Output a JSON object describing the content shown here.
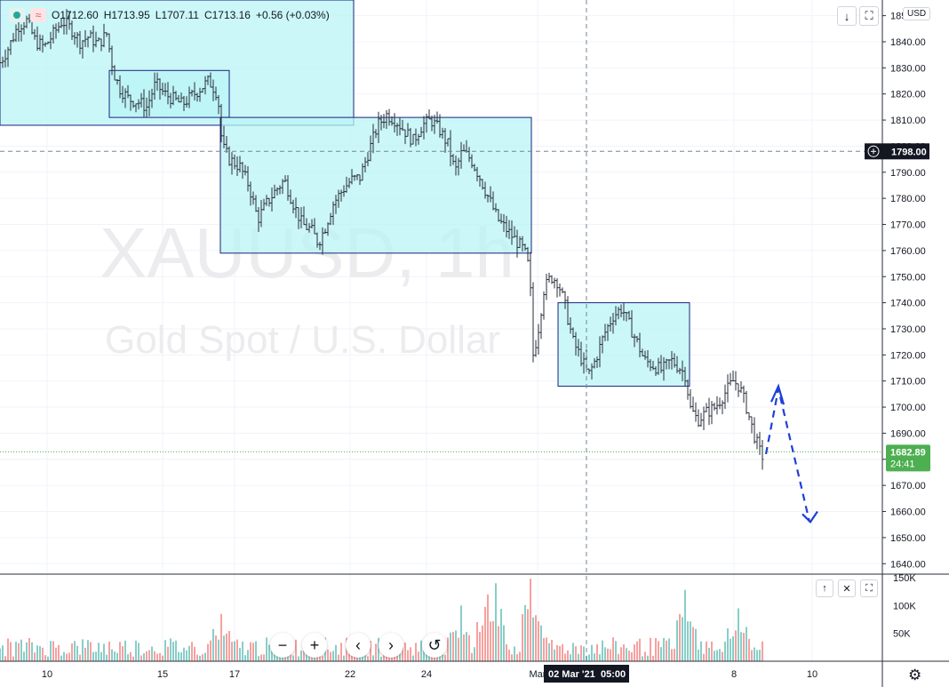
{
  "legend": {
    "open": "O1712.60",
    "high": "H1713.95",
    "low": "L1707.11",
    "close": "C1713.16",
    "change": "+0.56 (+0.03%)",
    "wave_glyph": "≈"
  },
  "toolbar": {
    "download_glyph": "↓",
    "fullscreen_glyph": "⛶",
    "currency": "USD"
  },
  "watermark": {
    "symbol": "XAUUSD, 1h",
    "description": "Gold Spot / U.S. Dollar"
  },
  "volume_pane": {
    "up_glyph": "↑",
    "close_glyph": "✕",
    "maximize_glyph": "⛶"
  },
  "navigation": {
    "zoom_out": "−",
    "zoom_in": "+",
    "scroll_left": "‹",
    "scroll_right": "›",
    "reset": "↺"
  },
  "settings_icon": "⚙",
  "colors": {
    "up": "#26a69a",
    "down": "#ef5350",
    "candle": "#2a2e39",
    "zone_fill": "#b9f4f6",
    "zone_border": "#1a237e",
    "projection": "#1e3fd8",
    "price_tag": "#4caf50",
    "crosshair_tag": "#131722"
  },
  "chart_data": {
    "type": "ohlc",
    "symbol": "XAUUSD",
    "interval": "1h",
    "y_axis": {
      "min": 1636,
      "max": 1856,
      "ticks": [
        1640,
        1650,
        1660,
        1670,
        1680,
        1690,
        1700,
        1710,
        1720,
        1730,
        1740,
        1750,
        1760,
        1770,
        1780,
        1790,
        1800,
        1810,
        1820,
        1830,
        1840,
        1850
      ],
      "tick_labels": [
        "1640.00",
        "1650.00",
        "1660.00",
        "1670.00",
        "1680.00",
        "1690.00",
        "1700.00",
        "1710.00",
        "1720.00",
        "1730.00",
        "1740.00",
        "1750.00",
        "1760.00",
        "1770.00",
        "1780.00",
        "1790.00",
        "1800.00",
        "1810.00",
        "1820.00",
        "1830.00",
        "1840.00",
        "1850.00"
      ]
    },
    "x_axis": {
      "tick_labels": [
        "10",
        "15",
        "17",
        "22",
        "24",
        "Mar",
        "8",
        "10"
      ],
      "crosshair_label_date": "02 Mar '21",
      "crosshair_label_time": "05:00"
    },
    "crosshair_price": "1798.00",
    "current_price": "1682.89",
    "countdown": "24:41",
    "current_price_value": 1682.89,
    "crosshair_price_value": 1798.0,
    "price_path": [
      [
        0,
        1832
      ],
      [
        10,
        1838
      ],
      [
        20,
        1846
      ],
      [
        30,
        1848
      ],
      [
        40,
        1840
      ],
      [
        50,
        1838
      ],
      [
        60,
        1843
      ],
      [
        70,
        1848
      ],
      [
        80,
        1845
      ],
      [
        90,
        1840
      ],
      [
        100,
        1842
      ],
      [
        110,
        1839
      ],
      [
        120,
        1843
      ],
      [
        128,
        1828
      ],
      [
        135,
        1822
      ],
      [
        145,
        1818
      ],
      [
        155,
        1817
      ],
      [
        165,
        1815
      ],
      [
        175,
        1824
      ],
      [
        185,
        1820
      ],
      [
        195,
        1818
      ],
      [
        205,
        1816
      ],
      [
        215,
        1819
      ],
      [
        225,
        1822
      ],
      [
        235,
        1825
      ],
      [
        245,
        1820
      ],
      [
        250,
        1800
      ],
      [
        258,
        1795
      ],
      [
        270,
        1792
      ],
      [
        280,
        1785
      ],
      [
        290,
        1772
      ],
      [
        300,
        1778
      ],
      [
        310,
        1783
      ],
      [
        320,
        1787
      ],
      [
        330,
        1778
      ],
      [
        340,
        1770
      ],
      [
        350,
        1768
      ],
      [
        358,
        1763
      ],
      [
        365,
        1768
      ],
      [
        375,
        1778
      ],
      [
        385,
        1783
      ],
      [
        395,
        1787
      ],
      [
        405,
        1788
      ],
      [
        415,
        1798
      ],
      [
        425,
        1808
      ],
      [
        435,
        1812
      ],
      [
        445,
        1810
      ],
      [
        455,
        1806
      ],
      [
        465,
        1802
      ],
      [
        475,
        1808
      ],
      [
        485,
        1810
      ],
      [
        495,
        1806
      ],
      [
        505,
        1800
      ],
      [
        512,
        1790
      ],
      [
        520,
        1798
      ],
      [
        530,
        1795
      ],
      [
        540,
        1788
      ],
      [
        550,
        1780
      ],
      [
        560,
        1772
      ],
      [
        570,
        1768
      ],
      [
        580,
        1764
      ],
      [
        590,
        1760
      ],
      [
        596,
        1752
      ],
      [
        600,
        1720
      ],
      [
        605,
        1728
      ],
      [
        612,
        1745
      ],
      [
        620,
        1750
      ],
      [
        628,
        1748
      ],
      [
        635,
        1740
      ],
      [
        645,
        1725
      ],
      [
        655,
        1718
      ],
      [
        662,
        1712
      ],
      [
        670,
        1718
      ],
      [
        680,
        1728
      ],
      [
        690,
        1735
      ],
      [
        700,
        1738
      ],
      [
        710,
        1730
      ],
      [
        718,
        1724
      ],
      [
        725,
        1718
      ],
      [
        735,
        1716
      ],
      [
        745,
        1714
      ],
      [
        755,
        1718
      ],
      [
        765,
        1715
      ],
      [
        772,
        1712
      ],
      [
        776,
        1700
      ],
      [
        785,
        1695
      ],
      [
        795,
        1698
      ],
      [
        805,
        1700
      ],
      [
        815,
        1705
      ],
      [
        825,
        1710
      ],
      [
        832,
        1708
      ],
      [
        840,
        1700
      ],
      [
        848,
        1690
      ],
      [
        855,
        1683
      ],
      [
        860,
        1680
      ]
    ],
    "zones": [
      {
        "price_top": 1856,
        "price_bottom": 1808
      },
      {
        "price_top": 1829,
        "price_bottom": 1811
      },
      {
        "price_top": 1811,
        "price_bottom": 1759
      },
      {
        "price_top": 1740,
        "price_bottom": 1708
      }
    ],
    "projection": [
      [
        1682,
        0
      ],
      [
        1707,
        1
      ],
      [
        1656,
        2
      ],
      [
        1659,
        2.2
      ]
    ],
    "volume_axis": {
      "max": 150000,
      "tick_labels": [
        "150K",
        "100K",
        "50K"
      ],
      "ticks": [
        150000,
        100000,
        50000
      ]
    }
  }
}
